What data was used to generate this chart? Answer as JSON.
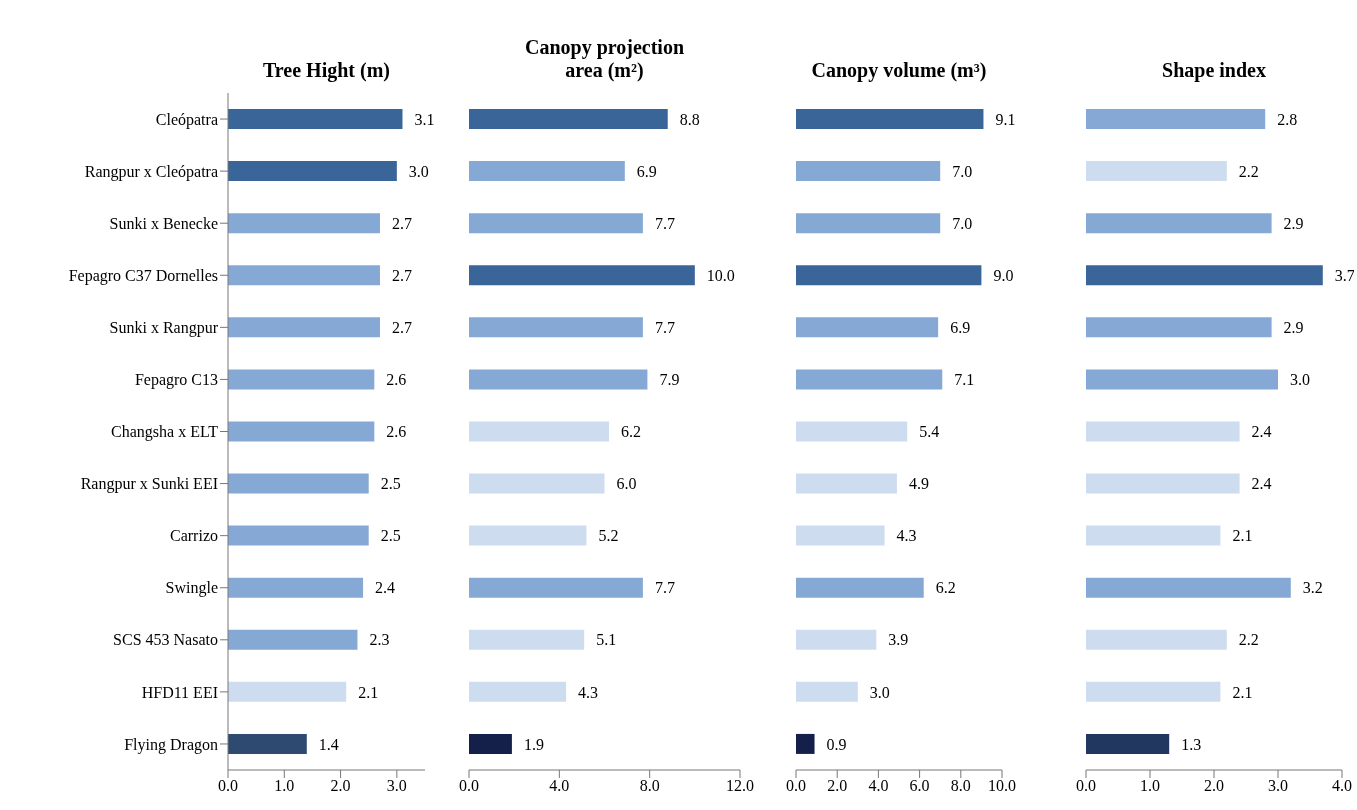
{
  "chart_data": [
    {
      "type": "bar",
      "orientation": "horizontal",
      "title": "Tree Hight (m)",
      "categories": [
        "Cleópatra",
        "Rangpur x Cleópatra",
        "Sunki x Benecke",
        "Fepagro C37 Dornelles",
        "Sunki x Rangpur",
        "Fepagro C13",
        "Changsha x ELT",
        "Rangpur x Sunki EEI",
        "Carrizo",
        "Swingle",
        "SCS 453 Nasato",
        "HFD11 EEI",
        "Flying Dragon"
      ],
      "values": [
        3.1,
        3.0,
        2.7,
        2.7,
        2.7,
        2.6,
        2.6,
        2.5,
        2.5,
        2.4,
        2.3,
        2.1,
        1.4
      ],
      "value_labels": [
        "3.1",
        "3.0",
        "2.7",
        "2.7",
        "2.7",
        "2.6",
        "2.6",
        "2.5",
        "2.5",
        "2.4",
        "2.3",
        "2.1",
        "1.4"
      ],
      "colors": [
        "#3a6599",
        "#3a6599",
        "#85a9d4",
        "#85a9d4",
        "#85a9d4",
        "#85a9d4",
        "#85a9d4",
        "#85a9d4",
        "#85a9d4",
        "#85a9d4",
        "#85a9d4",
        "#cddcef",
        "#2e4a70"
      ],
      "xlim": [
        0,
        3.5
      ],
      "xticks": [
        {
          "value": 0,
          "label": "0.0"
        },
        {
          "value": 1,
          "label": "1.0"
        },
        {
          "value": 2,
          "label": "2.0"
        },
        {
          "value": 3,
          "label": "3.0"
        }
      ],
      "grid": false,
      "legend": false
    },
    {
      "type": "bar",
      "orientation": "horizontal",
      "title": "Canopy projection area  (m²)",
      "categories": [
        null,
        null,
        null,
        null,
        null,
        null,
        null,
        null,
        null,
        null,
        null,
        null,
        null
      ],
      "values": [
        8.8,
        6.9,
        7.7,
        10.0,
        7.7,
        7.9,
        6.2,
        6.0,
        5.2,
        7.7,
        5.1,
        4.3,
        1.9
      ],
      "value_labels": [
        "8.8",
        "6.9",
        "7.7",
        "10.0",
        "7.7",
        "7.9",
        "6.2",
        "6.0",
        "5.2",
        "7.7",
        "5.1",
        "4.3",
        "1.9"
      ],
      "colors": [
        "#3a6599",
        "#85a9d4",
        "#85a9d4",
        "#3a6599",
        "#85a9d4",
        "#85a9d4",
        "#cddcef",
        "#cddcef",
        "#cddcef",
        "#85a9d4",
        "#cddcef",
        "#cddcef",
        "#14204a"
      ],
      "xlim": [
        0,
        12
      ],
      "xticks": [
        {
          "value": 0,
          "label": "0.0"
        },
        {
          "value": 4,
          "label": "4.0"
        },
        {
          "value": 8,
          "label": "8.0"
        },
        {
          "value": 12,
          "label": "12.0"
        }
      ],
      "tick_labels": "x",
      "grid": false,
      "legend": false
    },
    {
      "type": "bar",
      "orientation": "horizontal",
      "title": "Canopy volume (m³)",
      "categories": [
        null,
        null,
        null,
        null,
        null,
        null,
        null,
        null,
        null,
        null,
        null,
        null,
        null
      ],
      "values": [
        9.1,
        7.0,
        7.0,
        9.0,
        6.9,
        7.1,
        5.4,
        4.9,
        4.3,
        6.2,
        3.9,
        3.0,
        0.9
      ],
      "value_labels": [
        "9.1",
        "7.0",
        "7.0",
        "9.0",
        "6.9",
        "7.1",
        "5.4",
        "4.9",
        "4.3",
        "6.2",
        "3.9",
        "3.0",
        "0.9"
      ],
      "colors": [
        "#3a6599",
        "#85a9d4",
        "#85a9d4",
        "#3a6599",
        "#85a9d4",
        "#85a9d4",
        "#cddcef",
        "#cddcef",
        "#cddcef",
        "#85a9d4",
        "#cddcef",
        "#cddcef",
        "#14204a"
      ],
      "xlim": [
        0,
        10
      ],
      "xticks": [
        {
          "value": 0,
          "label": "0.0"
        },
        {
          "value": 2,
          "label": "2.0"
        },
        {
          "value": 4,
          "label": "4.0"
        },
        {
          "value": 6,
          "label": "6.0"
        },
        {
          "value": 8,
          "label": "8.0"
        },
        {
          "value": 10,
          "label": "10.0"
        }
      ],
      "tick_labels": "x",
      "grid": false,
      "legend": false
    },
    {
      "type": "bar",
      "orientation": "horizontal",
      "title": "Shape index",
      "categories": [
        null,
        null,
        null,
        null,
        null,
        null,
        null,
        null,
        null,
        null,
        null,
        null,
        null
      ],
      "values": [
        2.8,
        2.2,
        2.9,
        3.7,
        2.9,
        3.0,
        2.4,
        2.4,
        2.1,
        3.2,
        2.2,
        2.1,
        1.3
      ],
      "value_labels": [
        "2.8",
        "2.2",
        "2.9",
        "3.7",
        "2.9",
        "3.0",
        "2.4",
        "2.4",
        "2.1",
        "3.2",
        "2.2",
        "2.1",
        "1.3"
      ],
      "colors": [
        "#85a9d4",
        "#cddcef",
        "#85a9d4",
        "#3a6599",
        "#85a9d4",
        "#85a9d4",
        "#cddcef",
        "#cddcef",
        "#cddcef",
        "#85a9d4",
        "#cddcef",
        "#cddcef",
        "#22375f"
      ],
      "xlim": [
        0,
        4
      ],
      "xticks": [
        {
          "value": 0,
          "label": "0.0"
        },
        {
          "value": 1,
          "label": "1.0"
        },
        {
          "value": 2,
          "label": "2.0"
        },
        {
          "value": 3,
          "label": "3.0"
        },
        {
          "value": 4,
          "label": "4.0"
        }
      ],
      "tick_labels": "x",
      "grid": false,
      "legend": false
    }
  ]
}
